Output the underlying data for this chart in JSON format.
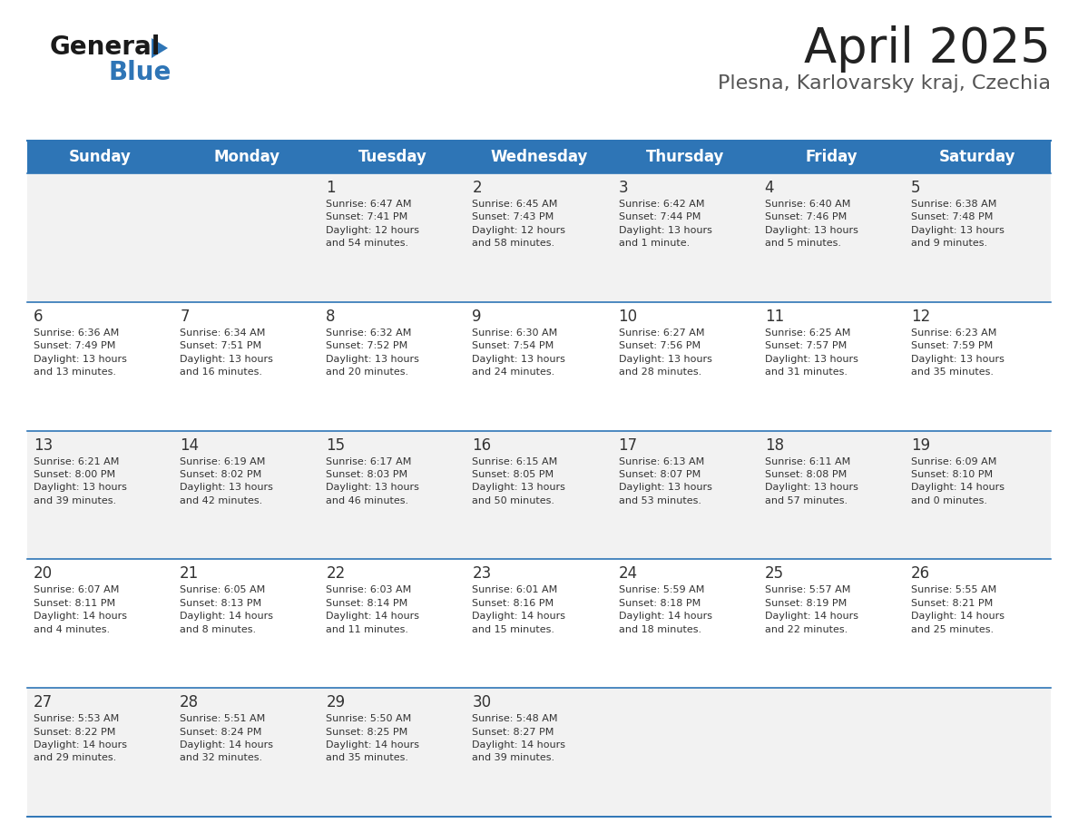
{
  "title": "April 2025",
  "subtitle": "Plesna, Karlovarsky kraj, Czechia",
  "header_color": "#2e75b6",
  "header_text_color": "#ffffff",
  "cell_bg_even": "#f2f2f2",
  "cell_bg_odd": "#ffffff",
  "divider_color": "#2e75b6",
  "text_color": "#333333",
  "days_of_week": [
    "Sunday",
    "Monday",
    "Tuesday",
    "Wednesday",
    "Thursday",
    "Friday",
    "Saturday"
  ],
  "calendar_data": [
    [
      {
        "day": "",
        "info": ""
      },
      {
        "day": "",
        "info": ""
      },
      {
        "day": "1",
        "info": "Sunrise: 6:47 AM\nSunset: 7:41 PM\nDaylight: 12 hours\nand 54 minutes."
      },
      {
        "day": "2",
        "info": "Sunrise: 6:45 AM\nSunset: 7:43 PM\nDaylight: 12 hours\nand 58 minutes."
      },
      {
        "day": "3",
        "info": "Sunrise: 6:42 AM\nSunset: 7:44 PM\nDaylight: 13 hours\nand 1 minute."
      },
      {
        "day": "4",
        "info": "Sunrise: 6:40 AM\nSunset: 7:46 PM\nDaylight: 13 hours\nand 5 minutes."
      },
      {
        "day": "5",
        "info": "Sunrise: 6:38 AM\nSunset: 7:48 PM\nDaylight: 13 hours\nand 9 minutes."
      }
    ],
    [
      {
        "day": "6",
        "info": "Sunrise: 6:36 AM\nSunset: 7:49 PM\nDaylight: 13 hours\nand 13 minutes."
      },
      {
        "day": "7",
        "info": "Sunrise: 6:34 AM\nSunset: 7:51 PM\nDaylight: 13 hours\nand 16 minutes."
      },
      {
        "day": "8",
        "info": "Sunrise: 6:32 AM\nSunset: 7:52 PM\nDaylight: 13 hours\nand 20 minutes."
      },
      {
        "day": "9",
        "info": "Sunrise: 6:30 AM\nSunset: 7:54 PM\nDaylight: 13 hours\nand 24 minutes."
      },
      {
        "day": "10",
        "info": "Sunrise: 6:27 AM\nSunset: 7:56 PM\nDaylight: 13 hours\nand 28 minutes."
      },
      {
        "day": "11",
        "info": "Sunrise: 6:25 AM\nSunset: 7:57 PM\nDaylight: 13 hours\nand 31 minutes."
      },
      {
        "day": "12",
        "info": "Sunrise: 6:23 AM\nSunset: 7:59 PM\nDaylight: 13 hours\nand 35 minutes."
      }
    ],
    [
      {
        "day": "13",
        "info": "Sunrise: 6:21 AM\nSunset: 8:00 PM\nDaylight: 13 hours\nand 39 minutes."
      },
      {
        "day": "14",
        "info": "Sunrise: 6:19 AM\nSunset: 8:02 PM\nDaylight: 13 hours\nand 42 minutes."
      },
      {
        "day": "15",
        "info": "Sunrise: 6:17 AM\nSunset: 8:03 PM\nDaylight: 13 hours\nand 46 minutes."
      },
      {
        "day": "16",
        "info": "Sunrise: 6:15 AM\nSunset: 8:05 PM\nDaylight: 13 hours\nand 50 minutes."
      },
      {
        "day": "17",
        "info": "Sunrise: 6:13 AM\nSunset: 8:07 PM\nDaylight: 13 hours\nand 53 minutes."
      },
      {
        "day": "18",
        "info": "Sunrise: 6:11 AM\nSunset: 8:08 PM\nDaylight: 13 hours\nand 57 minutes."
      },
      {
        "day": "19",
        "info": "Sunrise: 6:09 AM\nSunset: 8:10 PM\nDaylight: 14 hours\nand 0 minutes."
      }
    ],
    [
      {
        "day": "20",
        "info": "Sunrise: 6:07 AM\nSunset: 8:11 PM\nDaylight: 14 hours\nand 4 minutes."
      },
      {
        "day": "21",
        "info": "Sunrise: 6:05 AM\nSunset: 8:13 PM\nDaylight: 14 hours\nand 8 minutes."
      },
      {
        "day": "22",
        "info": "Sunrise: 6:03 AM\nSunset: 8:14 PM\nDaylight: 14 hours\nand 11 minutes."
      },
      {
        "day": "23",
        "info": "Sunrise: 6:01 AM\nSunset: 8:16 PM\nDaylight: 14 hours\nand 15 minutes."
      },
      {
        "day": "24",
        "info": "Sunrise: 5:59 AM\nSunset: 8:18 PM\nDaylight: 14 hours\nand 18 minutes."
      },
      {
        "day": "25",
        "info": "Sunrise: 5:57 AM\nSunset: 8:19 PM\nDaylight: 14 hours\nand 22 minutes."
      },
      {
        "day": "26",
        "info": "Sunrise: 5:55 AM\nSunset: 8:21 PM\nDaylight: 14 hours\nand 25 minutes."
      }
    ],
    [
      {
        "day": "27",
        "info": "Sunrise: 5:53 AM\nSunset: 8:22 PM\nDaylight: 14 hours\nand 29 minutes."
      },
      {
        "day": "28",
        "info": "Sunrise: 5:51 AM\nSunset: 8:24 PM\nDaylight: 14 hours\nand 32 minutes."
      },
      {
        "day": "29",
        "info": "Sunrise: 5:50 AM\nSunset: 8:25 PM\nDaylight: 14 hours\nand 35 minutes."
      },
      {
        "day": "30",
        "info": "Sunrise: 5:48 AM\nSunset: 8:27 PM\nDaylight: 14 hours\nand 39 minutes."
      },
      {
        "day": "",
        "info": ""
      },
      {
        "day": "",
        "info": ""
      },
      {
        "day": "",
        "info": ""
      }
    ]
  ],
  "logo_general_color": "#1a1a1a",
  "logo_blue_color": "#2e75b6",
  "logo_triangle_color": "#2e75b6",
  "title_fontsize": 38,
  "subtitle_fontsize": 16,
  "header_fontsize": 12,
  "day_number_fontsize": 12,
  "cell_text_fontsize": 8
}
